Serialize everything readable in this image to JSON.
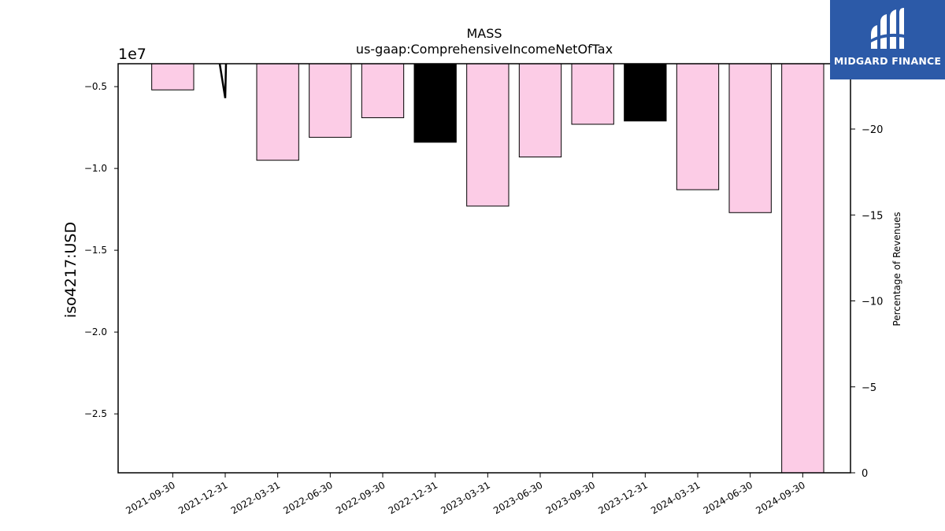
{
  "header": {
    "title": "MASS",
    "subtitle": "us-gaap:ComprehensiveIncomeNetOfTax"
  },
  "logo": {
    "text": "MIDGARD FINANCE",
    "background": "#2c5aa8"
  },
  "chart_data": {
    "type": "bar",
    "title": "MASS",
    "subtitle": "us-gaap:ComprehensiveIncomeNetOfTax",
    "ylabel": "iso4217:USD",
    "y_offset_text": "1e7",
    "y_scale": 10000000,
    "y2label": "Percentage of Revenues",
    "categories": [
      "2021-09-30",
      "2021-12-31",
      "2022-03-31",
      "2022-06-30",
      "2022-09-30",
      "2022-12-31",
      "2023-03-31",
      "2023-06-30",
      "2023-09-30",
      "2023-12-31",
      "2024-03-31",
      "2024-06-30",
      "2024-09-30"
    ],
    "values": [
      -5200000,
      -3600000,
      -9500000,
      -8100000,
      -6900000,
      -8400000,
      -12300000,
      -9300000,
      -7300000,
      -7100000,
      -11300000,
      -12700000,
      -28600000
    ],
    "bar_colors": [
      "#fccce6",
      "#fccce6",
      "#fccce6",
      "#fccce6",
      "#fccce6",
      "#000000",
      "#fccce6",
      "#fccce6",
      "#fccce6",
      "#000000",
      "#fccce6",
      "#fccce6",
      "#fccce6"
    ],
    "ylim": [
      -28600000,
      -3600000
    ],
    "yticks": [
      -5000000,
      -10000000,
      -15000000,
      -20000000,
      -25000000
    ],
    "ytick_labels": [
      "−0.5",
      "−1.0",
      "−1.5",
      "−2.0",
      "−2.5"
    ],
    "y2lim": [
      0,
      -23.8
    ],
    "y2ticks": [
      -20,
      -15,
      -10,
      -5,
      0
    ],
    "y2tick_labels": [
      "−20",
      "−15",
      "−10",
      "−5",
      "0"
    ],
    "spike_series": {
      "x_category": "2021-12-31",
      "values": [
        -3600000,
        -5700000
      ]
    },
    "grid": false,
    "colors": {
      "positive_bar": "#fccce6",
      "highlight_bar": "#000000"
    }
  }
}
